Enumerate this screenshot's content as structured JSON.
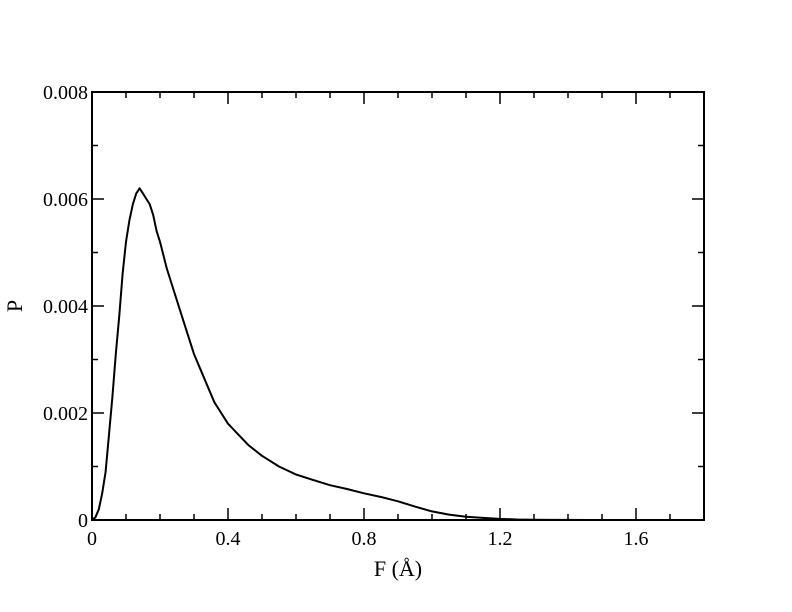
{
  "chart_data": {
    "type": "line",
    "xlabel": "F (Å)",
    "ylabel": "P",
    "xlim": [
      0,
      1.8
    ],
    "ylim": [
      0,
      0.008
    ],
    "x_ticks": [
      0,
      0.4,
      0.8,
      1.2,
      1.6
    ],
    "x_tick_labels": [
      "0",
      "0.4",
      "0.8",
      "1.2",
      "1.6"
    ],
    "y_ticks": [
      0,
      0.002,
      0.004,
      0.006,
      0.008
    ],
    "y_tick_labels": [
      "0",
      "0.002",
      "0.004",
      "0.006",
      "0.008"
    ],
    "x_minor_step": 0.1,
    "y_minor_step": 0.001,
    "grid": false,
    "legend": "none",
    "line_color": "#000000",
    "series": [
      {
        "x": [
          0.0,
          0.01,
          0.02,
          0.03,
          0.04,
          0.05,
          0.06,
          0.07,
          0.08,
          0.09,
          0.1,
          0.11,
          0.12,
          0.13,
          0.14,
          0.15,
          0.16,
          0.17,
          0.18,
          0.19,
          0.2,
          0.22,
          0.24,
          0.26,
          0.28,
          0.3,
          0.32,
          0.34,
          0.36,
          0.38,
          0.4,
          0.43,
          0.46,
          0.5,
          0.55,
          0.6,
          0.65,
          0.7,
          0.75,
          0.8,
          0.85,
          0.9,
          0.95,
          1.0,
          1.05,
          1.1,
          1.15,
          1.2,
          1.25,
          1.3,
          1.35,
          1.4,
          1.45
        ],
        "y": [
          0.0,
          5e-05,
          0.0002,
          0.0005,
          0.0009,
          0.0016,
          0.0023,
          0.0031,
          0.0038,
          0.0046,
          0.0052,
          0.0056,
          0.0059,
          0.0061,
          0.0062,
          0.0061,
          0.006,
          0.0059,
          0.0057,
          0.0054,
          0.0052,
          0.0047,
          0.0043,
          0.0039,
          0.0035,
          0.0031,
          0.0028,
          0.0025,
          0.0022,
          0.002,
          0.0018,
          0.0016,
          0.0014,
          0.0012,
          0.001,
          0.00085,
          0.00075,
          0.00065,
          0.00058,
          0.0005,
          0.00043,
          0.00035,
          0.00025,
          0.00016,
          0.0001,
          6e-05,
          4e-05,
          2e-05,
          1e-05,
          5e-06,
          2e-06,
          1e-06,
          0.0
        ]
      }
    ]
  }
}
